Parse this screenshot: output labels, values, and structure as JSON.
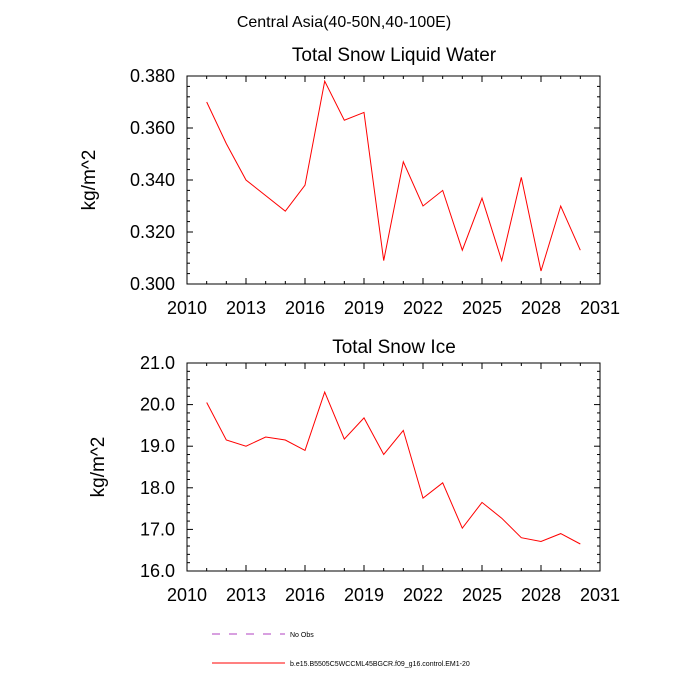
{
  "suptitle": "Central Asia(40-50N,40-100E)",
  "chart_data": [
    {
      "type": "line",
      "title": "Total Snow Liquid Water",
      "xlabel": "",
      "ylabel": "kg/m^2",
      "xlim": [
        2010,
        2031
      ],
      "ylim": [
        0.3,
        0.38
      ],
      "xticks": [
        2010,
        2013,
        2016,
        2019,
        2022,
        2025,
        2028,
        2031
      ],
      "xtick_labels": [
        "2010",
        "2013",
        "2016",
        "2019",
        "2022",
        "2025",
        "2028",
        "2031"
      ],
      "yticks": [
        0.3,
        0.32,
        0.34,
        0.36,
        0.38
      ],
      "ytick_labels": [
        "0.300",
        "0.320",
        "0.340",
        "0.360",
        "0.380"
      ],
      "series": [
        {
          "color": "#ff0000",
          "x": [
            2011,
            2012,
            2013,
            2014,
            2015,
            2016,
            2017,
            2018,
            2019,
            2020,
            2021,
            2022,
            2023,
            2024,
            2025,
            2026,
            2027,
            2028,
            2029,
            2030
          ],
          "values": [
            0.37,
            0.354,
            0.34,
            0.334,
            0.328,
            0.338,
            0.378,
            0.363,
            0.366,
            0.309,
            0.347,
            0.33,
            0.336,
            0.313,
            0.333,
            0.309,
            0.341,
            0.305,
            0.33,
            0.313
          ]
        }
      ]
    },
    {
      "type": "line",
      "title": "Total Snow Ice",
      "xlabel": "",
      "ylabel": "kg/m^2",
      "xlim": [
        2010,
        2031
      ],
      "ylim": [
        16.0,
        21.0
      ],
      "xticks": [
        2010,
        2013,
        2016,
        2019,
        2022,
        2025,
        2028,
        2031
      ],
      "xtick_labels": [
        "2010",
        "2013",
        "2016",
        "2019",
        "2022",
        "2025",
        "2028",
        "2031"
      ],
      "yticks": [
        16.0,
        17.0,
        18.0,
        19.0,
        20.0,
        21.0
      ],
      "ytick_labels": [
        "16.0",
        "17.0",
        "18.0",
        "19.0",
        "20.0",
        "21.0"
      ],
      "series": [
        {
          "color": "#ff0000",
          "x": [
            2011,
            2012,
            2013,
            2014,
            2015,
            2016,
            2017,
            2018,
            2019,
            2020,
            2021,
            2022,
            2023,
            2024,
            2025,
            2026,
            2027,
            2028,
            2029,
            2030
          ],
          "values": [
            20.05,
            19.15,
            19.0,
            19.22,
            19.15,
            18.9,
            20.3,
            19.17,
            19.68,
            18.8,
            19.38,
            17.75,
            18.12,
            17.03,
            17.65,
            17.27,
            16.8,
            16.71,
            16.9,
            16.65
          ]
        }
      ]
    }
  ],
  "legend": [
    {
      "label": "No Obs",
      "style": "dashed",
      "color": "#b040c0"
    },
    {
      "label": "b.e15.B5505C5WCCML45BGCR.f09_g16.control.EM1-20",
      "style": "solid",
      "color": "#ff0000"
    }
  ]
}
